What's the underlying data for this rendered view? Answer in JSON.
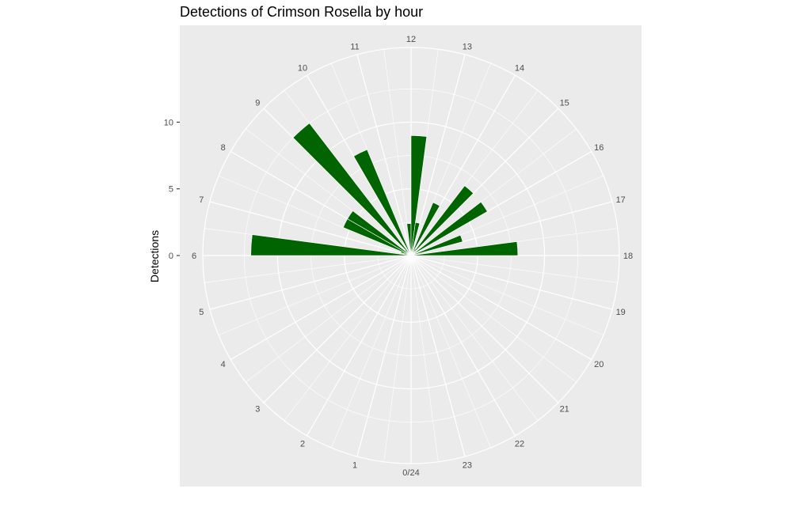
{
  "chart_data": {
    "type": "bar",
    "coord": "polar",
    "title": "Detections of Crimson Rosella by hour",
    "ylabel": "Detections",
    "hour_labels": [
      "0/24",
      "1",
      "2",
      "3",
      "4",
      "5",
      "6",
      "7",
      "8",
      "9",
      "10",
      "11",
      "12",
      "13",
      "14",
      "15",
      "16",
      "17",
      "18",
      "19",
      "20",
      "21",
      "22",
      "23"
    ],
    "y_ticks": [
      0,
      5,
      10
    ],
    "y_tick_labels": [
      "0",
      "5",
      "10"
    ],
    "ylim": [
      0,
      15.6
    ],
    "bar_color": "#006400",
    "panel_bg": "#ebebeb",
    "grid_color": "#ffffff",
    "grid": true,
    "bins": [
      {
        "hour": 6.0,
        "value": 12.0
      },
      {
        "hour": 6.5,
        "value": 0.5
      },
      {
        "hour": 7.0,
        "value": 0.8
      },
      {
        "hour": 7.5,
        "value": 5.5
      },
      {
        "hour": 8.0,
        "value": 5.5
      },
      {
        "hour": 8.5,
        "value": 0.6
      },
      {
        "hour": 9.0,
        "value": 12.5
      },
      {
        "hour": 10.0,
        "value": 8.6
      },
      {
        "hour": 11.5,
        "value": 2.4
      },
      {
        "hour": 12.0,
        "value": 9.0
      },
      {
        "hour": 12.5,
        "value": 2.5
      },
      {
        "hour": 13.5,
        "value": 4.3
      },
      {
        "hour": 14.0,
        "value": 0.6
      },
      {
        "hour": 14.5,
        "value": 6.6
      },
      {
        "hour": 15.5,
        "value": 6.6
      },
      {
        "hour": 16.5,
        "value": 4.0
      },
      {
        "hour": 17.5,
        "value": 8.0
      }
    ]
  }
}
